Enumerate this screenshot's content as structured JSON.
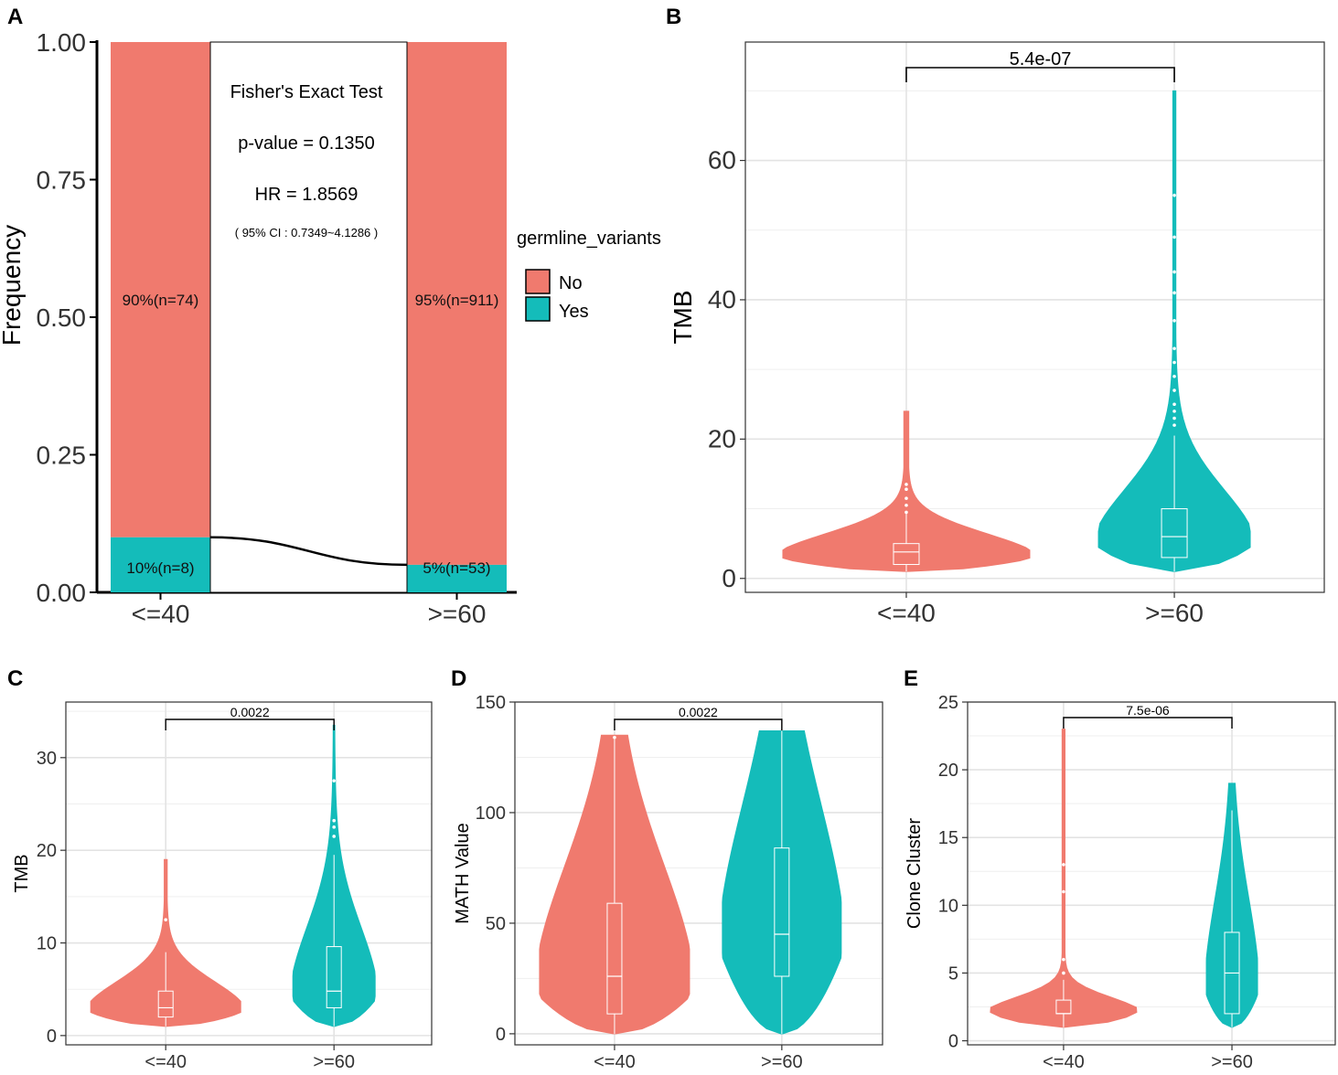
{
  "colors": {
    "no": "#F07A6E",
    "yes": "#14BCBA",
    "red": "#F07A6E",
    "teal": "#14BCBA"
  },
  "chart_data": [
    {
      "panel": "A",
      "type": "bar",
      "stacked": true,
      "categories": [
        "<=40",
        ">=60"
      ],
      "series": [
        {
          "name": "No",
          "values": [
            0.9,
            0.95
          ],
          "labels": [
            "90%(n=74)",
            "95%(n=911)"
          ]
        },
        {
          "name": "Yes",
          "values": [
            0.1,
            0.05
          ],
          "labels": [
            "10%(n=8)",
            "5%(n=53)"
          ]
        }
      ],
      "ylabel": "Frequency",
      "xlabel": "",
      "ylim": [
        0,
        1
      ],
      "yticks": [
        "0.00",
        "0.25",
        "0.50",
        "0.75",
        "1.00"
      ],
      "legend": {
        "title": "germline_variants",
        "entries": [
          "No",
          "Yes"
        ],
        "position": "right"
      },
      "annotations": [
        "Fisher's Exact Test",
        "p-value = 0.1350",
        "HR = 1.8569",
        "( 95% CI : 0.7349~4.1286 )"
      ]
    },
    {
      "panel": "B",
      "type": "violin",
      "categories": [
        "<=40",
        ">=60"
      ],
      "ylabel": "TMB",
      "ylim": [
        -2,
        77
      ],
      "yticks": [
        "0",
        "20",
        "40",
        "60"
      ],
      "pvalue": "5.4e-07",
      "series": [
        {
          "name": "<=40",
          "min": 1,
          "max": 24,
          "q1": 2,
          "median": 3.8,
          "q3": 5,
          "outliers": [
            9.5,
            10.5,
            11.5,
            12.8,
            13.5
          ]
        },
        {
          "name": ">=60",
          "min": 1,
          "max": 70,
          "q1": 3,
          "median": 6,
          "q3": 10,
          "outliers": [
            22,
            23,
            24,
            25,
            27,
            29,
            31,
            33,
            37,
            41,
            44,
            49,
            55
          ]
        }
      ]
    },
    {
      "panel": "C",
      "type": "violin",
      "categories": [
        "<=40",
        ">=60"
      ],
      "ylabel": "TMB",
      "ylim": [
        -1,
        36
      ],
      "yticks": [
        "0",
        "10",
        "20",
        "30"
      ],
      "pvalue": "0.0022",
      "series": [
        {
          "name": "<=40",
          "min": 1,
          "max": 19,
          "q1": 2,
          "median": 3,
          "q3": 4.8,
          "outliers": [
            12.5
          ]
        },
        {
          "name": ">=60",
          "min": 1,
          "max": 33.5,
          "q1": 3,
          "median": 4.8,
          "q3": 9.6,
          "outliers": [
            21.5,
            22.5,
            23.2,
            27.5
          ]
        }
      ]
    },
    {
      "panel": "D",
      "type": "violin",
      "categories": [
        "<=40",
        ">=60"
      ],
      "ylabel": "MATH Value",
      "ylim": [
        -5,
        150
      ],
      "yticks": [
        "0",
        "50",
        "100",
        "150"
      ],
      "pvalue": "0.0022",
      "series": [
        {
          "name": "<=40",
          "min": 0,
          "max": 135,
          "q1": 9,
          "median": 26,
          "q3": 59,
          "outliers": [
            134
          ]
        },
        {
          "name": ">=60",
          "min": 0,
          "max": 137,
          "q1": 26,
          "median": 45,
          "q3": 84,
          "outliers": []
        }
      ]
    },
    {
      "panel": "E",
      "type": "violin",
      "categories": [
        "<=40",
        ">=60"
      ],
      "ylabel": "Clone Cluster",
      "ylim": [
        -0.3,
        25
      ],
      "yticks": [
        "0",
        "5",
        "10",
        "15",
        "20",
        "25"
      ],
      "pvalue": "7.5e-06",
      "series": [
        {
          "name": "<=40",
          "min": 1,
          "max": 23,
          "q1": 2,
          "median": 2,
          "q3": 3,
          "outliers": [
            5,
            6,
            11,
            13
          ]
        },
        {
          "name": ">=60",
          "min": 1,
          "max": 19,
          "q1": 2,
          "median": 5,
          "q3": 8,
          "outliers": []
        }
      ]
    }
  ]
}
